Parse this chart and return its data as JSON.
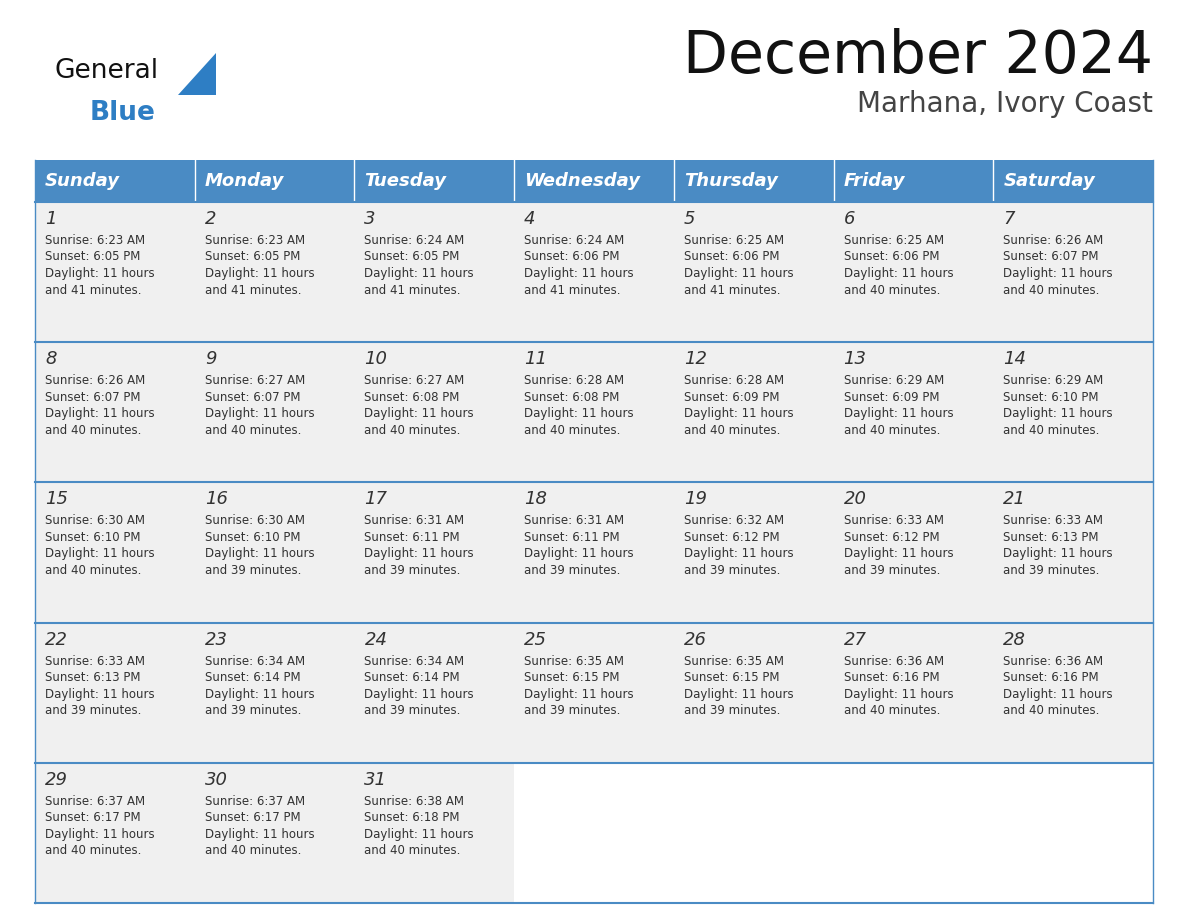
{
  "title": "December 2024",
  "subtitle": "Marhana, Ivory Coast",
  "header_color": "#4A8BC4",
  "header_text_color": "#FFFFFF",
  "days_of_week": [
    "Sunday",
    "Monday",
    "Tuesday",
    "Wednesday",
    "Thursday",
    "Friday",
    "Saturday"
  ],
  "bg_color": "#FFFFFF",
  "cell_bg_color": "#F0F0F0",
  "separator_color": "#4A8BC4",
  "text_color": "#333333",
  "title_color": "#111111",
  "subtitle_color": "#444444",
  "logo_general_color": "#111111",
  "logo_blue_color": "#2E7EC4",
  "weeks": [
    [
      {
        "day": 1,
        "sunrise": "6:23 AM",
        "sunset": "6:05 PM",
        "daylight": "11 hours and 41 minutes."
      },
      {
        "day": 2,
        "sunrise": "6:23 AM",
        "sunset": "6:05 PM",
        "daylight": "11 hours and 41 minutes."
      },
      {
        "day": 3,
        "sunrise": "6:24 AM",
        "sunset": "6:05 PM",
        "daylight": "11 hours and 41 minutes."
      },
      {
        "day": 4,
        "sunrise": "6:24 AM",
        "sunset": "6:06 PM",
        "daylight": "11 hours and 41 minutes."
      },
      {
        "day": 5,
        "sunrise": "6:25 AM",
        "sunset": "6:06 PM",
        "daylight": "11 hours and 41 minutes."
      },
      {
        "day": 6,
        "sunrise": "6:25 AM",
        "sunset": "6:06 PM",
        "daylight": "11 hours and 40 minutes."
      },
      {
        "day": 7,
        "sunrise": "6:26 AM",
        "sunset": "6:07 PM",
        "daylight": "11 hours and 40 minutes."
      }
    ],
    [
      {
        "day": 8,
        "sunrise": "6:26 AM",
        "sunset": "6:07 PM",
        "daylight": "11 hours and 40 minutes."
      },
      {
        "day": 9,
        "sunrise": "6:27 AM",
        "sunset": "6:07 PM",
        "daylight": "11 hours and 40 minutes."
      },
      {
        "day": 10,
        "sunrise": "6:27 AM",
        "sunset": "6:08 PM",
        "daylight": "11 hours and 40 minutes."
      },
      {
        "day": 11,
        "sunrise": "6:28 AM",
        "sunset": "6:08 PM",
        "daylight": "11 hours and 40 minutes."
      },
      {
        "day": 12,
        "sunrise": "6:28 AM",
        "sunset": "6:09 PM",
        "daylight": "11 hours and 40 minutes."
      },
      {
        "day": 13,
        "sunrise": "6:29 AM",
        "sunset": "6:09 PM",
        "daylight": "11 hours and 40 minutes."
      },
      {
        "day": 14,
        "sunrise": "6:29 AM",
        "sunset": "6:10 PM",
        "daylight": "11 hours and 40 minutes."
      }
    ],
    [
      {
        "day": 15,
        "sunrise": "6:30 AM",
        "sunset": "6:10 PM",
        "daylight": "11 hours and 40 minutes."
      },
      {
        "day": 16,
        "sunrise": "6:30 AM",
        "sunset": "6:10 PM",
        "daylight": "11 hours and 39 minutes."
      },
      {
        "day": 17,
        "sunrise": "6:31 AM",
        "sunset": "6:11 PM",
        "daylight": "11 hours and 39 minutes."
      },
      {
        "day": 18,
        "sunrise": "6:31 AM",
        "sunset": "6:11 PM",
        "daylight": "11 hours and 39 minutes."
      },
      {
        "day": 19,
        "sunrise": "6:32 AM",
        "sunset": "6:12 PM",
        "daylight": "11 hours and 39 minutes."
      },
      {
        "day": 20,
        "sunrise": "6:33 AM",
        "sunset": "6:12 PM",
        "daylight": "11 hours and 39 minutes."
      },
      {
        "day": 21,
        "sunrise": "6:33 AM",
        "sunset": "6:13 PM",
        "daylight": "11 hours and 39 minutes."
      }
    ],
    [
      {
        "day": 22,
        "sunrise": "6:33 AM",
        "sunset": "6:13 PM",
        "daylight": "11 hours and 39 minutes."
      },
      {
        "day": 23,
        "sunrise": "6:34 AM",
        "sunset": "6:14 PM",
        "daylight": "11 hours and 39 minutes."
      },
      {
        "day": 24,
        "sunrise": "6:34 AM",
        "sunset": "6:14 PM",
        "daylight": "11 hours and 39 minutes."
      },
      {
        "day": 25,
        "sunrise": "6:35 AM",
        "sunset": "6:15 PM",
        "daylight": "11 hours and 39 minutes."
      },
      {
        "day": 26,
        "sunrise": "6:35 AM",
        "sunset": "6:15 PM",
        "daylight": "11 hours and 39 minutes."
      },
      {
        "day": 27,
        "sunrise": "6:36 AM",
        "sunset": "6:16 PM",
        "daylight": "11 hours and 40 minutes."
      },
      {
        "day": 28,
        "sunrise": "6:36 AM",
        "sunset": "6:16 PM",
        "daylight": "11 hours and 40 minutes."
      }
    ],
    [
      {
        "day": 29,
        "sunrise": "6:37 AM",
        "sunset": "6:17 PM",
        "daylight": "11 hours and 40 minutes."
      },
      {
        "day": 30,
        "sunrise": "6:37 AM",
        "sunset": "6:17 PM",
        "daylight": "11 hours and 40 minutes."
      },
      {
        "day": 31,
        "sunrise": "6:38 AM",
        "sunset": "6:18 PM",
        "daylight": "11 hours and 40 minutes."
      },
      null,
      null,
      null,
      null
    ]
  ],
  "fig_width": 11.88,
  "fig_height": 9.18,
  "dpi": 100
}
